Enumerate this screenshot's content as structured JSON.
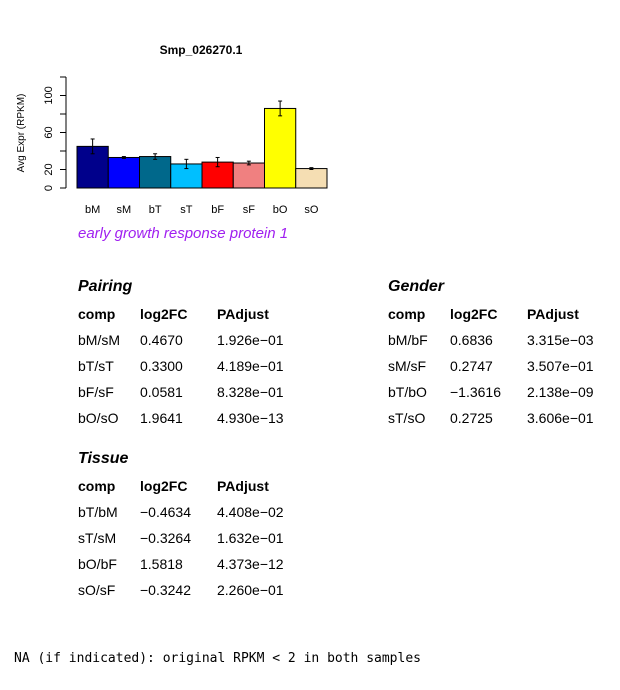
{
  "chart_data": {
    "type": "bar",
    "title": "Smp_026270.1",
    "ylabel": "Avg Expr (RPKM)",
    "xlabel": "",
    "ylim": [
      0,
      120
    ],
    "yticks": [
      0,
      20,
      60,
      100
    ],
    "categories": [
      "bM",
      "sM",
      "bT",
      "sT",
      "bF",
      "sF",
      "bO",
      "sO"
    ],
    "values": [
      45,
      33,
      34,
      26,
      28,
      27,
      86,
      21
    ],
    "errors": [
      8,
      1,
      3,
      5,
      5,
      2,
      8,
      1
    ],
    "colors": [
      "#00008b",
      "#0000ff",
      "#00688b",
      "#00bfff",
      "#ff0000",
      "#f08080",
      "#ffff00",
      "#f5deb3"
    ]
  },
  "subtitle": "early growth response protein 1",
  "tables": {
    "pairing": {
      "title": "Pairing",
      "headers": [
        "comp",
        "log2FC",
        "PAdjust"
      ],
      "rows": [
        [
          "bM/sM",
          "0.4670",
          "1.926e−01"
        ],
        [
          "bT/sT",
          "0.3300",
          "4.189e−01"
        ],
        [
          "bF/sF",
          "0.0581",
          "8.328e−01"
        ],
        [
          "bO/sO",
          "1.9641",
          "4.930e−13"
        ]
      ]
    },
    "gender": {
      "title": "Gender",
      "headers": [
        "comp",
        "log2FC",
        "PAdjust"
      ],
      "rows": [
        [
          "bM/bF",
          "0.6836",
          "3.315e−03"
        ],
        [
          "sM/sF",
          "0.2747",
          "3.507e−01"
        ],
        [
          "bT/bO",
          "−1.3616",
          "2.138e−09"
        ],
        [
          "sT/sO",
          "0.2725",
          "3.606e−01"
        ]
      ]
    },
    "tissue": {
      "title": "Tissue",
      "headers": [
        "comp",
        "log2FC",
        "PAdjust"
      ],
      "rows": [
        [
          "bT/bM",
          "−0.4634",
          "4.408e−02"
        ],
        [
          "sT/sM",
          "−0.3264",
          "1.632e−01"
        ],
        [
          "bO/bF",
          "1.5818",
          "4.373e−12"
        ],
        [
          "sO/sF",
          "−0.3242",
          "2.260e−01"
        ]
      ]
    }
  },
  "footnote": "NA (if indicated): original RPKM < 2 in both samples"
}
